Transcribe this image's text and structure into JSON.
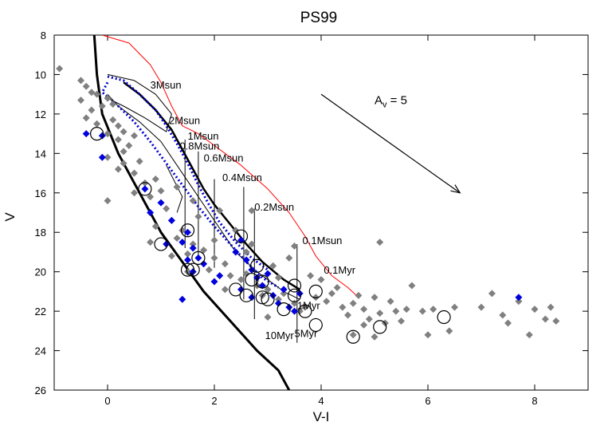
{
  "chart_data": {
    "type": "scatter",
    "title": "PS99",
    "xlabel": "V-I",
    "ylabel": "V",
    "xlim": [
      -1,
      9
    ],
    "ylim": [
      26,
      8
    ],
    "y_inverted": true,
    "grid": false,
    "xticks": [
      0,
      2,
      4,
      6,
      8
    ],
    "yticks": [
      8,
      10,
      12,
      14,
      16,
      18,
      20,
      22,
      24,
      26
    ],
    "colors": {
      "field": "#808080",
      "members": "#0000dd",
      "zams": "#000000",
      "envelope": "#ff0000",
      "isochrone_1myr": "#0000cc",
      "tracks": "#000000"
    },
    "series": [
      {
        "name": "",
        "marker": "diamond",
        "color": "#808080",
        "points": [
          [
            -0.9,
            9.7
          ],
          [
            -0.5,
            10.3
          ],
          [
            -0.4,
            10.6
          ],
          [
            -0.3,
            10.9
          ],
          [
            -0.5,
            11.3
          ],
          [
            -0.2,
            11.0
          ],
          [
            -0.3,
            11.8
          ],
          [
            -0.1,
            11.6
          ],
          [
            0.0,
            11.2
          ],
          [
            0.1,
            11.5
          ],
          [
            -0.4,
            12.2
          ],
          [
            -0.2,
            12.5
          ],
          [
            0.1,
            12.3
          ],
          [
            0.2,
            12.6
          ],
          [
            0.3,
            12.9
          ],
          [
            0.0,
            13.0
          ],
          [
            0.2,
            13.3
          ],
          [
            0.4,
            13.6
          ],
          [
            0.5,
            13.1
          ],
          [
            0.3,
            13.9
          ],
          [
            0.0,
            14.2
          ],
          [
            0.3,
            14.5
          ],
          [
            0.6,
            14.4
          ],
          [
            0.2,
            14.8
          ],
          [
            0.5,
            15.0
          ],
          [
            0.7,
            15.5
          ],
          [
            0.9,
            15.3
          ],
          [
            1.0,
            15.9
          ],
          [
            0.8,
            16.2
          ],
          [
            0.5,
            16.0
          ],
          [
            0.0,
            16.4
          ],
          [
            1.1,
            16.8
          ],
          [
            1.2,
            17.4
          ],
          [
            0.9,
            17.7
          ],
          [
            1.4,
            17.9
          ],
          [
            1.3,
            18.3
          ],
          [
            1.6,
            18.6
          ],
          [
            1.8,
            18.9
          ],
          [
            1.5,
            19.1
          ],
          [
            2.0,
            19.3
          ],
          [
            2.2,
            19.6
          ],
          [
            1.9,
            19.9
          ],
          [
            2.3,
            20.2
          ],
          [
            2.5,
            20.4
          ],
          [
            2.6,
            20.1
          ],
          [
            2.8,
            20.7
          ],
          [
            3.0,
            20.9
          ],
          [
            2.9,
            21.2
          ],
          [
            3.2,
            21.4
          ],
          [
            3.3,
            21.1
          ],
          [
            3.5,
            21.6
          ],
          [
            3.7,
            21.8
          ],
          [
            3.6,
            22.0
          ],
          [
            3.9,
            21.3
          ],
          [
            4.1,
            21.5
          ],
          [
            4.2,
            21.1
          ],
          [
            4.4,
            21.8
          ],
          [
            4.5,
            22.2
          ],
          [
            4.6,
            21.6
          ],
          [
            4.8,
            21.9
          ],
          [
            4.9,
            22.4
          ],
          [
            5.0,
            21.3
          ],
          [
            5.1,
            22.1
          ],
          [
            5.2,
            22.6
          ],
          [
            5.3,
            21.5
          ],
          [
            5.4,
            22.0
          ],
          [
            5.5,
            22.5
          ],
          [
            5.6,
            21.9
          ],
          [
            5.7,
            20.7
          ],
          [
            5.1,
            18.5
          ],
          [
            5.9,
            22.0
          ],
          [
            6.0,
            23.2
          ],
          [
            6.1,
            21.9
          ],
          [
            6.4,
            23.0
          ],
          [
            6.5,
            21.8
          ],
          [
            7.0,
            21.8
          ],
          [
            7.2,
            21.1
          ],
          [
            7.4,
            22.2
          ],
          [
            7.5,
            22.6
          ],
          [
            7.7,
            21.5
          ],
          [
            8.0,
            21.9
          ],
          [
            8.2,
            22.4
          ],
          [
            8.3,
            21.8
          ],
          [
            8.4,
            22.5
          ],
          [
            7.9,
            23.2
          ],
          [
            3.8,
            20.2
          ],
          [
            3.4,
            19.3
          ],
          [
            2.7,
            18.6
          ],
          [
            2.4,
            17.9
          ],
          [
            2.1,
            16.9
          ],
          [
            1.7,
            17.2
          ],
          [
            1.6,
            16.4
          ],
          [
            1.3,
            15.7
          ],
          [
            2.0,
            18.4
          ],
          [
            2.6,
            19.0
          ],
          [
            3.1,
            19.7
          ],
          [
            4.0,
            20.4
          ],
          [
            4.3,
            20.8
          ],
          [
            4.7,
            21.2
          ],
          [
            4.6,
            23.2
          ],
          [
            3.0,
            22.3
          ],
          [
            2.2,
            20.9
          ],
          [
            1.5,
            20.0
          ],
          [
            1.2,
            19.2
          ],
          [
            0.8,
            18.5
          ],
          [
            2.7,
            16.9
          ],
          [
            3.5,
            18.7
          ],
          [
            3.2,
            20.3
          ],
          [
            4.8,
            22.7
          ],
          [
            5.0,
            23.3
          ]
        ]
      },
      {
        "name": "",
        "marker": "diamond",
        "color": "#0000dd",
        "points": [
          [
            -0.4,
            13.0
          ],
          [
            -0.1,
            13.1
          ],
          [
            -0.1,
            14.2
          ],
          [
            0.7,
            15.8
          ],
          [
            1.0,
            16.5
          ],
          [
            0.8,
            17.0
          ],
          [
            1.2,
            17.4
          ],
          [
            1.5,
            18.0
          ],
          [
            1.1,
            18.6
          ],
          [
            1.4,
            18.5
          ],
          [
            1.6,
            18.8
          ],
          [
            1.5,
            19.4
          ],
          [
            1.7,
            19.3
          ],
          [
            1.8,
            19.6
          ],
          [
            1.6,
            20.0
          ],
          [
            2.0,
            20.5
          ],
          [
            2.1,
            20.2
          ],
          [
            1.4,
            21.4
          ],
          [
            2.4,
            19.0
          ],
          [
            2.5,
            18.4
          ],
          [
            2.6,
            19.4
          ],
          [
            2.7,
            19.9
          ],
          [
            2.8,
            20.3
          ],
          [
            2.9,
            20.7
          ],
          [
            3.0,
            20.1
          ],
          [
            3.1,
            21.2
          ],
          [
            3.2,
            21.6
          ],
          [
            3.3,
            20.9
          ],
          [
            3.4,
            21.8
          ],
          [
            3.5,
            22.0
          ],
          [
            2.5,
            20.9
          ],
          [
            2.7,
            21.3
          ],
          [
            3.6,
            21.1
          ],
          [
            7.7,
            21.3
          ]
        ]
      },
      {
        "name": "",
        "marker": "circle",
        "color": "#000000",
        "points": [
          [
            -0.2,
            13.0
          ],
          [
            0.7,
            15.8
          ],
          [
            1.0,
            18.6
          ],
          [
            1.5,
            17.9
          ],
          [
            1.5,
            19.9
          ],
          [
            1.7,
            19.3
          ],
          [
            1.6,
            19.9
          ],
          [
            2.5,
            18.2
          ],
          [
            2.4,
            20.9
          ],
          [
            2.6,
            21.2
          ],
          [
            2.7,
            20.4
          ],
          [
            2.8,
            19.7
          ],
          [
            2.9,
            20.5
          ],
          [
            2.9,
            21.3
          ],
          [
            3.0,
            21.4
          ],
          [
            3.3,
            21.9
          ],
          [
            3.5,
            20.7
          ],
          [
            3.5,
            21.2
          ],
          [
            3.7,
            22.0
          ],
          [
            3.9,
            21.0
          ],
          [
            3.9,
            22.7
          ],
          [
            4.6,
            23.3
          ],
          [
            5.1,
            22.8
          ],
          [
            6.3,
            22.3
          ]
        ]
      }
    ],
    "lines": [
      {
        "name": "",
        "color": "#000000",
        "width": 3,
        "points": [
          [
            -0.25,
            8
          ],
          [
            -0.2,
            10
          ],
          [
            -0.1,
            12
          ],
          [
            0.2,
            14
          ],
          [
            0.6,
            16
          ],
          [
            1.0,
            18
          ],
          [
            1.4,
            19.5
          ],
          [
            1.8,
            21
          ],
          [
            2.3,
            22.5
          ],
          [
            2.8,
            24
          ],
          [
            3.2,
            25
          ],
          [
            3.4,
            26
          ]
        ]
      },
      {
        "name": "",
        "color": "#000000",
        "width": 1,
        "points": [
          [
            0.0,
            11.0
          ],
          [
            0.2,
            11.6
          ],
          [
            0.6,
            12.4
          ],
          [
            1.0,
            13.4
          ],
          [
            1.3,
            14.6
          ],
          [
            1.6,
            15.8
          ],
          [
            1.9,
            17.0
          ],
          [
            2.2,
            18.2
          ],
          [
            2.4,
            19.0
          ],
          [
            2.8,
            20.0
          ],
          [
            3.3,
            21.0
          ],
          [
            3.6,
            21.4
          ]
        ]
      },
      {
        "name": "",
        "color": "#000000",
        "width": 2.5,
        "points": [
          [
            0.3,
            10.4
          ],
          [
            0.6,
            11.0
          ],
          [
            0.9,
            11.8
          ],
          [
            1.2,
            12.8
          ],
          [
            1.4,
            13.8
          ],
          [
            1.6,
            14.8
          ],
          [
            1.8,
            15.8
          ],
          [
            2.0,
            16.6
          ],
          [
            2.3,
            17.6
          ],
          [
            2.6,
            18.6
          ],
          [
            2.9,
            19.5
          ],
          [
            3.3,
            20.4
          ],
          [
            3.6,
            20.9
          ]
        ]
      },
      {
        "name": "",
        "color": "#ff0000",
        "width": 1,
        "points": [
          [
            -0.1,
            8.0
          ],
          [
            0.4,
            8.4
          ],
          [
            0.8,
            9.5
          ],
          [
            1.0,
            10.4
          ],
          [
            1.2,
            11.6
          ],
          [
            1.4,
            12.6
          ],
          [
            1.7,
            13.0
          ],
          [
            2.0,
            13.6
          ],
          [
            2.5,
            14.6
          ],
          [
            3.0,
            15.8
          ],
          [
            3.4,
            17.0
          ],
          [
            3.7,
            18.2
          ],
          [
            3.9,
            19.2
          ],
          [
            4.2,
            20.2
          ],
          [
            4.5,
            20.8
          ],
          [
            4.7,
            21.3
          ]
        ]
      },
      {
        "name": "",
        "color": "#0000cc",
        "width": 3,
        "dash": true,
        "points": [
          [
            0.0,
            10.1
          ],
          [
            0.3,
            10.3
          ],
          [
            0.6,
            11.0
          ],
          [
            0.9,
            11.8
          ],
          [
            1.1,
            12.6
          ],
          [
            1.3,
            13.5
          ],
          [
            1.5,
            14.5
          ],
          [
            1.7,
            15.6
          ],
          [
            1.9,
            16.6
          ],
          [
            2.1,
            17.5
          ],
          [
            2.4,
            18.5
          ],
          [
            2.7,
            19.3
          ],
          [
            3.0,
            19.9
          ]
        ]
      },
      {
        "name": "",
        "color": "#0000cc",
        "width": 3,
        "dash": true,
        "points": [
          [
            0.0,
            10.4
          ],
          [
            -0.1,
            10.9
          ],
          [
            0.2,
            11.6
          ],
          [
            0.5,
            12.4
          ],
          [
            0.8,
            13.4
          ],
          [
            1.1,
            14.5
          ],
          [
            1.4,
            15.6
          ],
          [
            1.7,
            16.7
          ],
          [
            2.0,
            17.7
          ],
          [
            2.3,
            18.6
          ],
          [
            2.6,
            19.5
          ],
          [
            2.9,
            20.3
          ],
          [
            3.2,
            20.8
          ]
        ]
      },
      {
        "name": "",
        "color": "#000000",
        "width": 1,
        "points": [
          [
            0.0,
            10.0
          ],
          [
            0.5,
            10.3
          ],
          [
            0.9,
            11.0
          ],
          [
            1.2,
            12.0
          ],
          [
            1.1,
            12.9
          ],
          [
            0.7,
            12.2
          ],
          [
            0.3,
            11.6
          ],
          [
            0.0,
            11.2
          ]
        ]
      },
      {
        "name": "",
        "color": "#000000",
        "width": 1,
        "points": [
          [
            1.45,
            13.3
          ],
          [
            1.45,
            18.8
          ]
        ]
      },
      {
        "name": "",
        "color": "#000000",
        "width": 1,
        "points": [
          [
            1.7,
            13.9
          ],
          [
            1.7,
            19.4
          ]
        ]
      },
      {
        "name": "",
        "color": "#000000",
        "width": 1,
        "points": [
          [
            2.0,
            15.3
          ],
          [
            2.0,
            19.8
          ]
        ]
      },
      {
        "name": "",
        "color": "#000000",
        "width": 1,
        "points": [
          [
            2.55,
            15.7
          ],
          [
            2.55,
            21.4
          ]
        ]
      },
      {
        "name": "",
        "color": "#000000",
        "width": 1,
        "points": [
          [
            2.75,
            16.8
          ],
          [
            2.75,
            22.4
          ]
        ]
      },
      {
        "name": "",
        "color": "#000000",
        "width": 1,
        "points": [
          [
            3.55,
            18.6
          ],
          [
            3.55,
            23.6
          ]
        ]
      },
      {
        "name": "",
        "color": "#000000",
        "width": 1,
        "points": [
          [
            1.1,
            14.6
          ],
          [
            1.4,
            16.2
          ],
          [
            1.3,
            17.0
          ]
        ]
      }
    ],
    "annotations": [
      {
        "text": "3Msun",
        "x": 0.8,
        "y": 10.5
      },
      {
        "text": "2Msun",
        "x": 1.15,
        "y": 12.3
      },
      {
        "text": "1Msun",
        "x": 1.5,
        "y": 13.1
      },
      {
        "text": "0.8Msun",
        "x": 1.35,
        "y": 13.6
      },
      {
        "text": "0.6Msun",
        "x": 1.8,
        "y": 14.2
      },
      {
        "text": "0.4Msun",
        "x": 2.15,
        "y": 15.2
      },
      {
        "text": "0.2Msun",
        "x": 2.75,
        "y": 16.7
      },
      {
        "text": "0.1Msun",
        "x": 3.65,
        "y": 18.4
      },
      {
        "text": "0.1Myr",
        "x": 4.05,
        "y": 19.9
      },
      {
        "text": "1Myr",
        "x": 3.55,
        "y": 21.7
      },
      {
        "text": "5Myr",
        "x": 3.5,
        "y": 23.1
      },
      {
        "text": "10Myr",
        "x": 2.95,
        "y": 23.2
      }
    ],
    "extinction_vector": {
      "label_main": "A",
      "label_sub": "v",
      "label_rest": " = 5",
      "from": [
        4.0,
        11.0
      ],
      "to": [
        6.6,
        16.0
      ],
      "label_at": [
        5.0,
        11.5
      ]
    }
  }
}
